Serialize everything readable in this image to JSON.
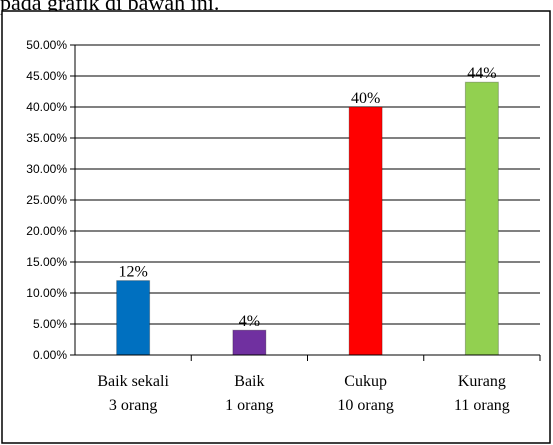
{
  "caption_fragment": "pada grafik di bawah ini.",
  "chart_data": {
    "type": "bar",
    "categories": [
      [
        "Baik sekali",
        "3 orang"
      ],
      [
        "Baik",
        "1 orang"
      ],
      [
        "Cukup",
        "10 orang"
      ],
      [
        "Kurang",
        "11 orang"
      ]
    ],
    "values": [
      12,
      4,
      40,
      44
    ],
    "data_labels": [
      "12%",
      "4%",
      "40%",
      "44%"
    ],
    "bar_colors": [
      "#0070C0",
      "#7030A0",
      "#FF0000",
      "#92D050"
    ],
    "yticks": [
      "0.00%",
      "5.00%",
      "10.00%",
      "15.00%",
      "20.00%",
      "25.00%",
      "30.00%",
      "35.00%",
      "40.00%",
      "45.00%",
      "50.00%"
    ],
    "ylim": [
      0,
      50
    ],
    "grid": true,
    "title": "",
    "xlabel": "",
    "ylabel": ""
  }
}
